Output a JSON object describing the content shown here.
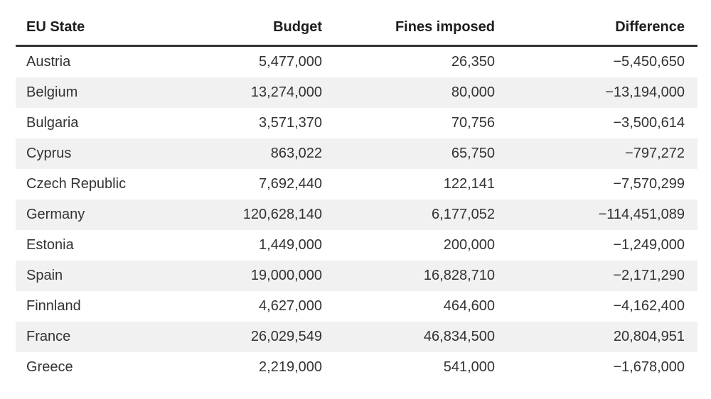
{
  "colors": {
    "background": "#ffffff",
    "stripe": "#f1f1f1",
    "header_border": "#333333",
    "header_text": "#1d1d1d",
    "body_text": "#333333"
  },
  "table": {
    "headers": [
      "EU State",
      "Budget",
      "Fines imposed",
      "Difference"
    ],
    "rows": [
      {
        "state": "Austria",
        "budget": "5,477,000",
        "fines": "26,350",
        "difference": "−5,450,650"
      },
      {
        "state": "Belgium",
        "budget": "13,274,000",
        "fines": "80,000",
        "difference": "−13,194,000"
      },
      {
        "state": "Bulgaria",
        "budget": "3,571,370",
        "fines": "70,756",
        "difference": "−3,500,614"
      },
      {
        "state": "Cyprus",
        "budget": "863,022",
        "fines": "65,750",
        "difference": "−797,272"
      },
      {
        "state": "Czech Republic",
        "budget": "7,692,440",
        "fines": "122,141",
        "difference": "−7,570,299"
      },
      {
        "state": "Germany",
        "budget": "120,628,140",
        "fines": "6,177,052",
        "difference": "−114,451,089"
      },
      {
        "state": "Estonia",
        "budget": "1,449,000",
        "fines": "200,000",
        "difference": "−1,249,000"
      },
      {
        "state": "Spain",
        "budget": "19,000,000",
        "fines": "16,828,710",
        "difference": "−2,171,290"
      },
      {
        "state": "Finnland",
        "budget": "4,627,000",
        "fines": "464,600",
        "difference": "−4,162,400"
      },
      {
        "state": "France",
        "budget": "26,029,549",
        "fines": "46,834,500",
        "difference": "20,804,951"
      },
      {
        "state": "Greece",
        "budget": "2,219,000",
        "fines": "541,000",
        "difference": "−1,678,000"
      }
    ]
  },
  "chart_data": {
    "type": "table",
    "columns": [
      "EU State",
      "Budget",
      "Fines imposed",
      "Difference"
    ],
    "rows": [
      [
        "Austria",
        5477000,
        26350,
        -5450650
      ],
      [
        "Belgium",
        13274000,
        80000,
        -13194000
      ],
      [
        "Bulgaria",
        3571370,
        70756,
        -3500614
      ],
      [
        "Cyprus",
        863022,
        65750,
        -797272
      ],
      [
        "Czech Republic",
        7692440,
        122141,
        -7570299
      ],
      [
        "Germany",
        120628140,
        6177052,
        -114451089
      ],
      [
        "Estonia",
        1449000,
        200000,
        -1249000
      ],
      [
        "Spain",
        19000000,
        16828710,
        -2171290
      ],
      [
        "Finnland",
        4627000,
        464600,
        -4162400
      ],
      [
        "France",
        26029549,
        46834500,
        20804951
      ],
      [
        "Greece",
        2219000,
        541000,
        -1678000
      ]
    ]
  }
}
